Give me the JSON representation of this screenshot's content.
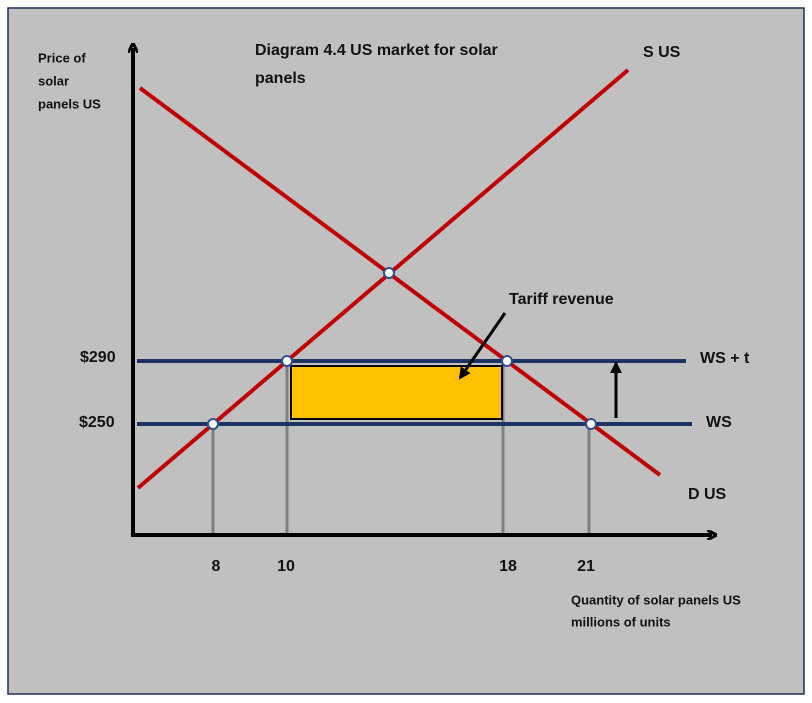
{
  "title": [
    "Diagram 4.4 US market for solar",
    "panels"
  ],
  "y_axis_label": [
    "Price of",
    "solar",
    "panels US"
  ],
  "x_axis_label": [
    "Quantity of solar panels US",
    "millions of units"
  ],
  "curves": {
    "supply": "S US",
    "demand": "D US",
    "world_supply_tariff": "WS + t",
    "world_supply": "WS"
  },
  "annotation": "Tariff revenue",
  "price_labels": [
    "$290",
    "$250"
  ],
  "quantity_labels": [
    "8",
    "10",
    "18",
    "21"
  ]
}
